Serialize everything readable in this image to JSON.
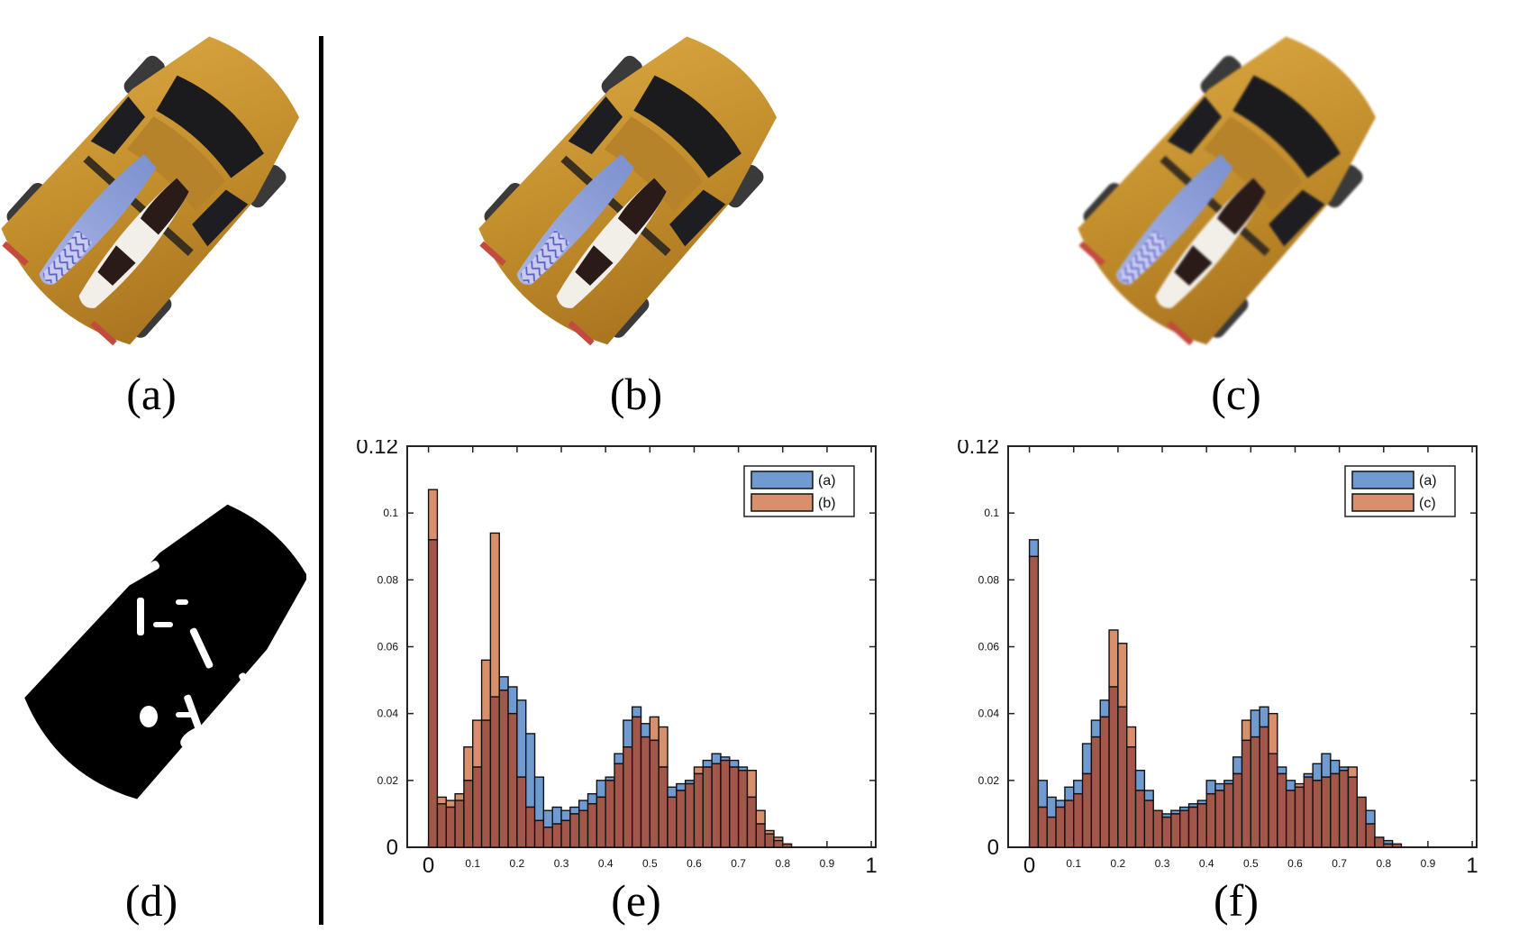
{
  "captions": {
    "a": "(a)",
    "b": "(b)",
    "c": "(c)",
    "d": "(d)",
    "e": "(e)",
    "f": "(f)"
  },
  "colors": {
    "car_body": "#c9972e",
    "series_a": "#6f9bd0",
    "series_other": "#d78f6c",
    "overlap": "#a2574a",
    "mask_bg": "#000000",
    "mask_fg": "#ffffff"
  },
  "chart_data": [
    {
      "type": "bar",
      "panel": "(e)",
      "legend": [
        "(a)",
        "(b)"
      ],
      "legend_position": "top-right",
      "xlim": [
        0,
        1
      ],
      "ylim": [
        0,
        0.12
      ],
      "xticks": [
        "0",
        "0.1",
        "0.2",
        "0.3",
        "0.4",
        "0.5",
        "0.6",
        "0.7",
        "0.8",
        "0.9",
        "1"
      ],
      "yticks": [
        "0",
        "0.02",
        "0.04",
        "0.06",
        "0.08",
        "0.1",
        "0.12"
      ],
      "bin_width": 0.02,
      "series": [
        {
          "name": "(a)",
          "values": [
            0.092,
            0.013,
            0.012,
            0.014,
            0.02,
            0.024,
            0.038,
            0.045,
            0.051,
            0.048,
            0.044,
            0.034,
            0.021,
            0.011,
            0.012,
            0.011,
            0.012,
            0.014,
            0.016,
            0.02,
            0.021,
            0.028,
            0.038,
            0.042,
            0.037,
            0.032,
            0.024,
            0.018,
            0.019,
            0.02,
            0.022,
            0.026,
            0.028,
            0.027,
            0.026,
            0.024,
            0.015,
            0.007,
            0.004,
            0.002,
            0.001,
            0,
            0,
            0,
            0,
            0,
            0,
            0,
            0,
            0
          ]
        },
        {
          "name": "(b)",
          "values": [
            0.107,
            0.015,
            0.014,
            0.016,
            0.03,
            0.038,
            0.056,
            0.094,
            0.047,
            0.04,
            0.021,
            0.012,
            0.008,
            0.006,
            0.007,
            0.008,
            0.01,
            0.011,
            0.013,
            0.015,
            0.02,
            0.025,
            0.03,
            0.039,
            0.033,
            0.039,
            0.036,
            0.015,
            0.017,
            0.019,
            0.024,
            0.024,
            0.025,
            0.026,
            0.024,
            0.023,
            0.023,
            0.011,
            0.005,
            0.003,
            0.001,
            0,
            0,
            0,
            0,
            0,
            0,
            0,
            0,
            0
          ]
        }
      ]
    },
    {
      "type": "bar",
      "panel": "(f)",
      "legend": [
        "(a)",
        "(c)"
      ],
      "legend_position": "top-right",
      "xlim": [
        0,
        1
      ],
      "ylim": [
        0,
        0.12
      ],
      "xticks": [
        "0",
        "0.1",
        "0.2",
        "0.3",
        "0.4",
        "0.5",
        "0.6",
        "0.7",
        "0.8",
        "0.9",
        "1"
      ],
      "yticks": [
        "0",
        "0.02",
        "0.04",
        "0.06",
        "0.08",
        "0.1",
        "0.12"
      ],
      "bin_width": 0.02,
      "series": [
        {
          "name": "(a)",
          "values": [
            0.092,
            0.02,
            0.015,
            0.014,
            0.018,
            0.02,
            0.031,
            0.038,
            0.044,
            0.048,
            0.042,
            0.03,
            0.023,
            0.017,
            0.011,
            0.01,
            0.011,
            0.012,
            0.013,
            0.014,
            0.02,
            0.019,
            0.02,
            0.027,
            0.032,
            0.041,
            0.042,
            0.028,
            0.024,
            0.02,
            0.018,
            0.022,
            0.025,
            0.028,
            0.026,
            0.024,
            0.021,
            0.015,
            0.011,
            0.003,
            0.002,
            0.001,
            0,
            0,
            0,
            0,
            0,
            0,
            0,
            0
          ]
        },
        {
          "name": "(c)",
          "values": [
            0.087,
            0.012,
            0.009,
            0.012,
            0.014,
            0.016,
            0.022,
            0.033,
            0.039,
            0.065,
            0.061,
            0.036,
            0.017,
            0.014,
            0.011,
            0.009,
            0.01,
            0.011,
            0.012,
            0.013,
            0.016,
            0.017,
            0.019,
            0.022,
            0.038,
            0.033,
            0.036,
            0.04,
            0.022,
            0.017,
            0.019,
            0.021,
            0.02,
            0.021,
            0.022,
            0.023,
            0.024,
            0.015,
            0.007,
            0.003,
            0.001,
            0.001,
            0,
            0,
            0,
            0,
            0,
            0,
            0,
            0
          ]
        }
      ]
    }
  ]
}
